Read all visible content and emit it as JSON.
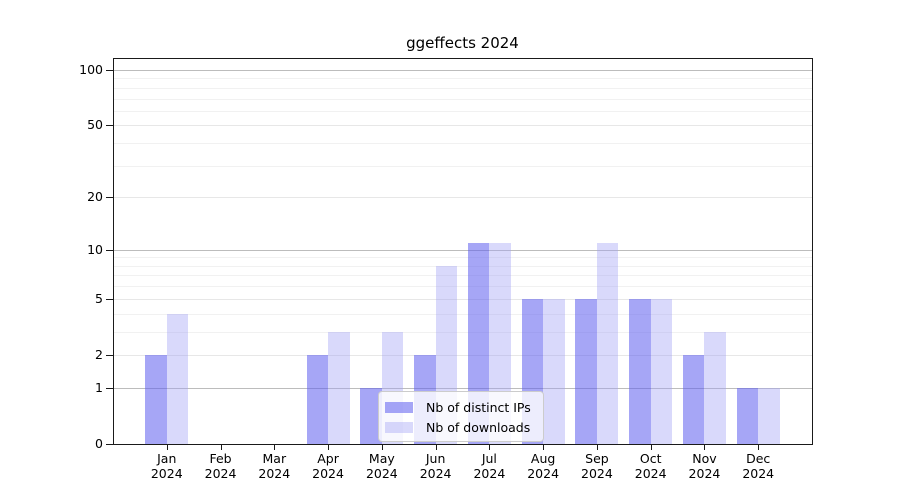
{
  "chart_data": {
    "type": "bar",
    "title": "ggeffects 2024",
    "scale": "log1p",
    "categories": [
      "Jan",
      "Feb",
      "Mar",
      "Apr",
      "May",
      "Jun",
      "Jul",
      "Aug",
      "Sep",
      "Oct",
      "Nov",
      "Dec"
    ],
    "x_tick_year": "2024",
    "series": [
      {
        "name": "Nb of distinct IPs",
        "color": "rgba(92,92,239,0.55)",
        "values": [
          2,
          0,
          0,
          2,
          1,
          2,
          11,
          5,
          5,
          5,
          2,
          1
        ]
      },
      {
        "name": "Nb of downloads",
        "color": "rgba(160,160,245,0.4)",
        "values": [
          4,
          0,
          0,
          3,
          3,
          8,
          11,
          5,
          11,
          5,
          3,
          1
        ]
      }
    ],
    "yticks": [
      0,
      1,
      2,
      5,
      10,
      20,
      50,
      100
    ],
    "major_grid_values": [
      1,
      10,
      100
    ],
    "minor_grid_values": [
      3,
      4,
      6,
      7,
      8,
      9,
      30,
      40,
      60,
      70,
      80,
      90
    ],
    "ylim": [
      0,
      115
    ],
    "grid": "horizontal",
    "legend_position": "lower center",
    "colors": {
      "major_grid": "#bcbcbc",
      "labeled_grid": "#e7e7e7",
      "minor_grid": "#f1f1f1",
      "spine": "#1a1a1a",
      "background": "#ffffff"
    }
  }
}
